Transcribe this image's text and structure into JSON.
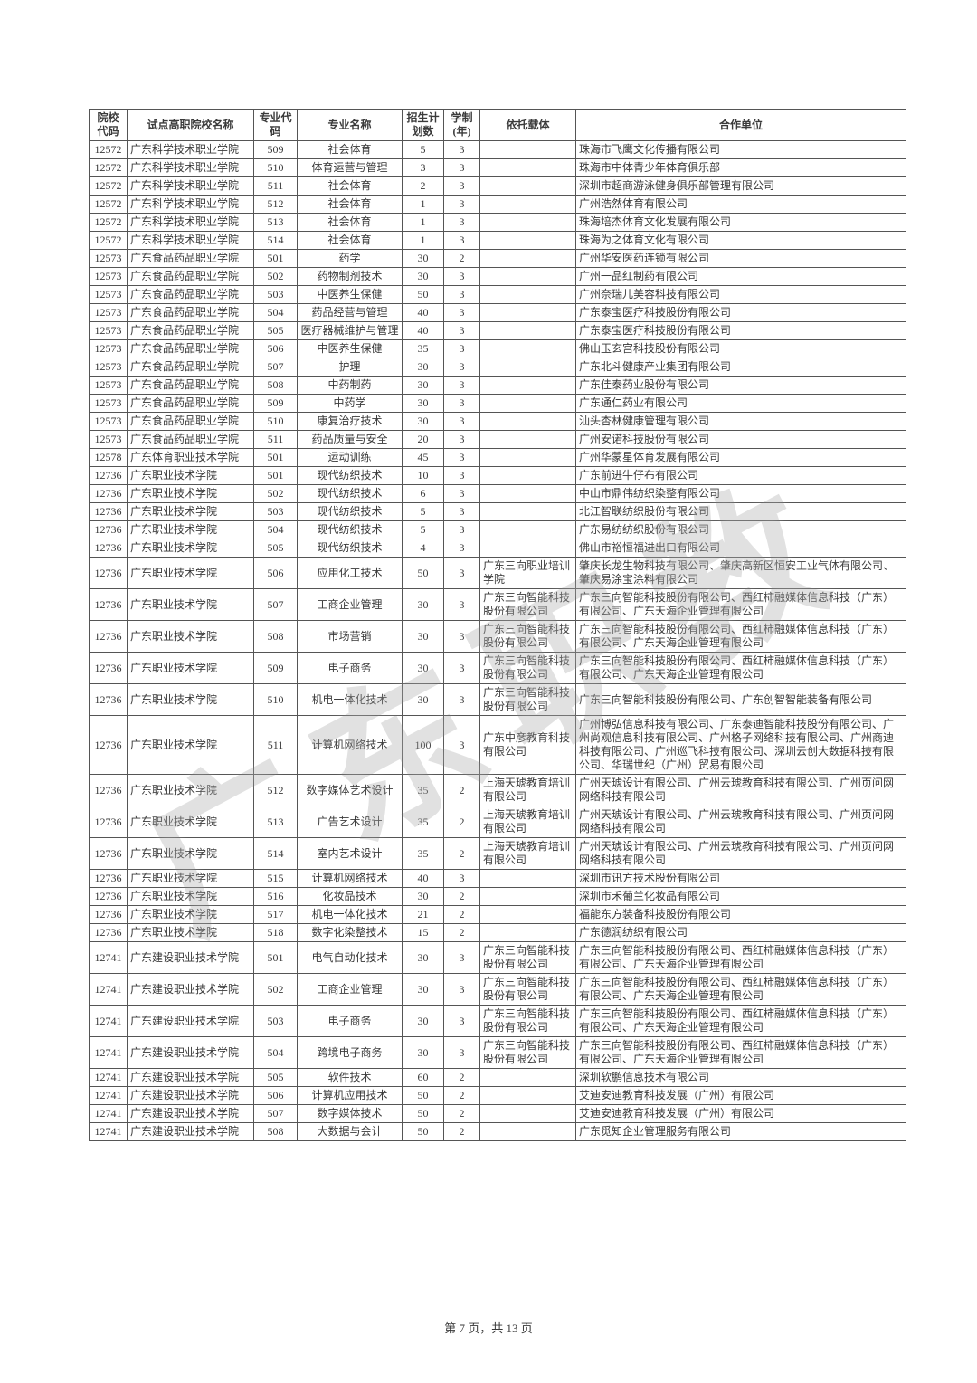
{
  "watermark": "广东职教",
  "footer": "第 7 页，共 13 页",
  "columns": [
    {
      "key": "code",
      "label": "院校\n代码",
      "align": "center"
    },
    {
      "key": "school",
      "label": "试点高职院校名称",
      "align": "left"
    },
    {
      "key": "major_code",
      "label": "专业代码",
      "align": "center"
    },
    {
      "key": "major_name",
      "label": "专业名称",
      "align": "center"
    },
    {
      "key": "plan",
      "label": "招生计\n划数",
      "align": "center"
    },
    {
      "key": "years",
      "label": "学制\n(年)",
      "align": "center"
    },
    {
      "key": "carrier",
      "label": "依托载体",
      "align": "left"
    },
    {
      "key": "partner",
      "label": "合作单位",
      "align": "left"
    }
  ],
  "rows": [
    [
      "12572",
      "广东科学技术职业学院",
      "509",
      "社会体育",
      "5",
      "3",
      "",
      "珠海市飞鹰文化传播有限公司"
    ],
    [
      "12572",
      "广东科学技术职业学院",
      "510",
      "体育运营与管理",
      "3",
      "3",
      "",
      "珠海市中体青少年体育俱乐部"
    ],
    [
      "12572",
      "广东科学技术职业学院",
      "511",
      "社会体育",
      "2",
      "3",
      "",
      "深圳市超商游泳健身俱乐部管理有限公司"
    ],
    [
      "12572",
      "广东科学技术职业学院",
      "512",
      "社会体育",
      "1",
      "3",
      "",
      "广州浩然体育有限公司"
    ],
    [
      "12572",
      "广东科学技术职业学院",
      "513",
      "社会体育",
      "1",
      "3",
      "",
      "珠海培杰体育文化发展有限公司"
    ],
    [
      "12572",
      "广东科学技术职业学院",
      "514",
      "社会体育",
      "1",
      "3",
      "",
      "珠海为之体育文化有限公司"
    ],
    [
      "12573",
      "广东食品药品职业学院",
      "501",
      "药学",
      "30",
      "2",
      "",
      "广州华安医药连锁有限公司"
    ],
    [
      "12573",
      "广东食品药品职业学院",
      "502",
      "药物制剂技术",
      "30",
      "3",
      "",
      "广州一品红制药有限公司"
    ],
    [
      "12573",
      "广东食品药品职业学院",
      "503",
      "中医养生保健",
      "50",
      "3",
      "",
      "广州奈瑞儿美容科技有限公司"
    ],
    [
      "12573",
      "广东食品药品职业学院",
      "504",
      "药品经营与管理",
      "40",
      "3",
      "",
      "广东泰宝医疗科技股份有限公司"
    ],
    [
      "12573",
      "广东食品药品职业学院",
      "505",
      "医疗器械维护与管理",
      "40",
      "3",
      "",
      "广东泰宝医疗科技股份有限公司"
    ],
    [
      "12573",
      "广东食品药品职业学院",
      "506",
      "中医养生保健",
      "35",
      "3",
      "",
      "佛山玉玄宫科技股份有限公司"
    ],
    [
      "12573",
      "广东食品药品职业学院",
      "507",
      "护理",
      "30",
      "3",
      "",
      "广东北斗健康产业集团有限公司"
    ],
    [
      "12573",
      "广东食品药品职业学院",
      "508",
      "中药制药",
      "30",
      "3",
      "",
      "广东佳泰药业股份有限公司"
    ],
    [
      "12573",
      "广东食品药品职业学院",
      "509",
      "中药学",
      "30",
      "3",
      "",
      "广东通仁药业有限公司"
    ],
    [
      "12573",
      "广东食品药品职业学院",
      "510",
      "康复治疗技术",
      "30",
      "3",
      "",
      "汕头杏林健康管理有限公司"
    ],
    [
      "12573",
      "广东食品药品职业学院",
      "511",
      "药品质量与安全",
      "20",
      "3",
      "",
      "广州安诺科技股份有限公司"
    ],
    [
      "12578",
      "广东体育职业技术学院",
      "501",
      "运动训练",
      "45",
      "3",
      "",
      "广州华蒙星体育发展有限公司"
    ],
    [
      "12736",
      "广东职业技术学院",
      "501",
      "现代纺织技术",
      "10",
      "3",
      "",
      "广东前进牛仔布有限公司"
    ],
    [
      "12736",
      "广东职业技术学院",
      "502",
      "现代纺织技术",
      "6",
      "3",
      "",
      "中山市鼎伟纺织染整有限公司"
    ],
    [
      "12736",
      "广东职业技术学院",
      "503",
      "现代纺织技术",
      "5",
      "3",
      "",
      "北江智联纺织股份有限公司"
    ],
    [
      "12736",
      "广东职业技术学院",
      "504",
      "现代纺织技术",
      "5",
      "3",
      "",
      "广东易纺纺织股份有限公司"
    ],
    [
      "12736",
      "广东职业技术学院",
      "505",
      "现代纺织技术",
      "4",
      "3",
      "",
      "佛山市裕恒福进出口有限公司"
    ],
    [
      "12736",
      "广东职业技术学院",
      "506",
      "应用化工技术",
      "50",
      "3",
      "广东三向职业培训学院",
      "肇庆长龙生物科技有限公司、肇庆高新区恒安工业气体有限公司、肇庆易涂宝涂料有限公司"
    ],
    [
      "12736",
      "广东职业技术学院",
      "507",
      "工商企业管理",
      "30",
      "3",
      "广东三向智能科技股份有限公司",
      "广东三向智能科技股份有限公司、西红柿融媒体信息科技（广东）有限公司、广东天海企业管理有限公司"
    ],
    [
      "12736",
      "广东职业技术学院",
      "508",
      "市场营销",
      "30",
      "3",
      "广东三向智能科技股份有限公司",
      "广东三向智能科技股份有限公司、西红柿融媒体信息科技（广东）有限公司、广东天海企业管理有限公司"
    ],
    [
      "12736",
      "广东职业技术学院",
      "509",
      "电子商务",
      "30",
      "3",
      "广东三向智能科技股份有限公司",
      "广东三向智能科技股份有限公司、西红柿融媒体信息科技（广东）有限公司、广东天海企业管理有限公司"
    ],
    [
      "12736",
      "广东职业技术学院",
      "510",
      "机电一体化技术",
      "30",
      "3",
      "广东三向智能科技股份有限公司",
      "广东三向智能科技股份有限公司、广东创智智能装备有限公司"
    ],
    [
      "12736",
      "广东职业技术学院",
      "511",
      "计算机网络技术",
      "100",
      "3",
      "广东中彦教育科技有限公司",
      "广州博弘信息科技有限公司、广东泰迪智能科技股份有限公司、广州尚观信息科技有限公司、广州格子网络科技有限公司、广州商迪科技有限公司、广州巡飞科技有限公司、深圳云创大数据科技有限公司、华瑞世纪（广州）贸易有限公司"
    ],
    [
      "12736",
      "广东职业技术学院",
      "512",
      "数字媒体艺术设计",
      "35",
      "2",
      "上海天琥教育培训有限公司",
      "广州天琥设计有限公司、广州云琥教育科技有限公司、广州页问网网络科技有限公司"
    ],
    [
      "12736",
      "广东职业技术学院",
      "513",
      "广告艺术设计",
      "35",
      "2",
      "上海天琥教育培训有限公司",
      "广州天琥设计有限公司、广州云琥教育科技有限公司、广州页问网网络科技有限公司"
    ],
    [
      "12736",
      "广东职业技术学院",
      "514",
      "室内艺术设计",
      "35",
      "2",
      "上海天琥教育培训有限公司",
      "广州天琥设计有限公司、广州云琥教育科技有限公司、广州页问网网络科技有限公司"
    ],
    [
      "12736",
      "广东职业技术学院",
      "515",
      "计算机网络技术",
      "40",
      "3",
      "",
      "深圳市讯方技术股份有限公司"
    ],
    [
      "12736",
      "广东职业技术学院",
      "516",
      "化妆品技术",
      "30",
      "2",
      "",
      "深圳市禾葡兰化妆品有限公司"
    ],
    [
      "12736",
      "广东职业技术学院",
      "517",
      "机电一体化技术",
      "21",
      "2",
      "",
      "福能东方装备科技股份有限公司"
    ],
    [
      "12736",
      "广东职业技术学院",
      "518",
      "数字化染整技术",
      "15",
      "2",
      "",
      "广东德润纺织有限公司"
    ],
    [
      "12741",
      "广东建设职业技术学院",
      "501",
      "电气自动化技术",
      "30",
      "3",
      "广东三向智能科技股份有限公司",
      "广东三向智能科技股份有限公司、西红柿融媒体信息科技（广东）有限公司、广东天海企业管理有限公司"
    ],
    [
      "12741",
      "广东建设职业技术学院",
      "502",
      "工商企业管理",
      "30",
      "3",
      "广东三向智能科技股份有限公司",
      "广东三向智能科技股份有限公司、西红柿融媒体信息科技（广东）有限公司、广东天海企业管理有限公司"
    ],
    [
      "12741",
      "广东建设职业技术学院",
      "503",
      "电子商务",
      "30",
      "3",
      "广东三向智能科技股份有限公司",
      "广东三向智能科技股份有限公司、西红柿融媒体信息科技（广东）有限公司、广东天海企业管理有限公司"
    ],
    [
      "12741",
      "广东建设职业技术学院",
      "504",
      "跨境电子商务",
      "30",
      "3",
      "广东三向智能科技股份有限公司",
      "广东三向智能科技股份有限公司、西红柿融媒体信息科技（广东）有限公司、广东天海企业管理有限公司"
    ],
    [
      "12741",
      "广东建设职业技术学院",
      "505",
      "软件技术",
      "60",
      "2",
      "",
      "深圳软鹏信息技术有限公司"
    ],
    [
      "12741",
      "广东建设职业技术学院",
      "506",
      "计算机应用技术",
      "50",
      "2",
      "",
      "艾迪安迪教育科技发展（广州）有限公司"
    ],
    [
      "12741",
      "广东建设职业技术学院",
      "507",
      "数字媒体技术",
      "50",
      "2",
      "",
      "艾迪安迪教育科技发展（广州）有限公司"
    ],
    [
      "12741",
      "广东建设职业技术学院",
      "508",
      "大数据与会计",
      "50",
      "2",
      "",
      "广东觅知企业管理服务有限公司"
    ]
  ]
}
